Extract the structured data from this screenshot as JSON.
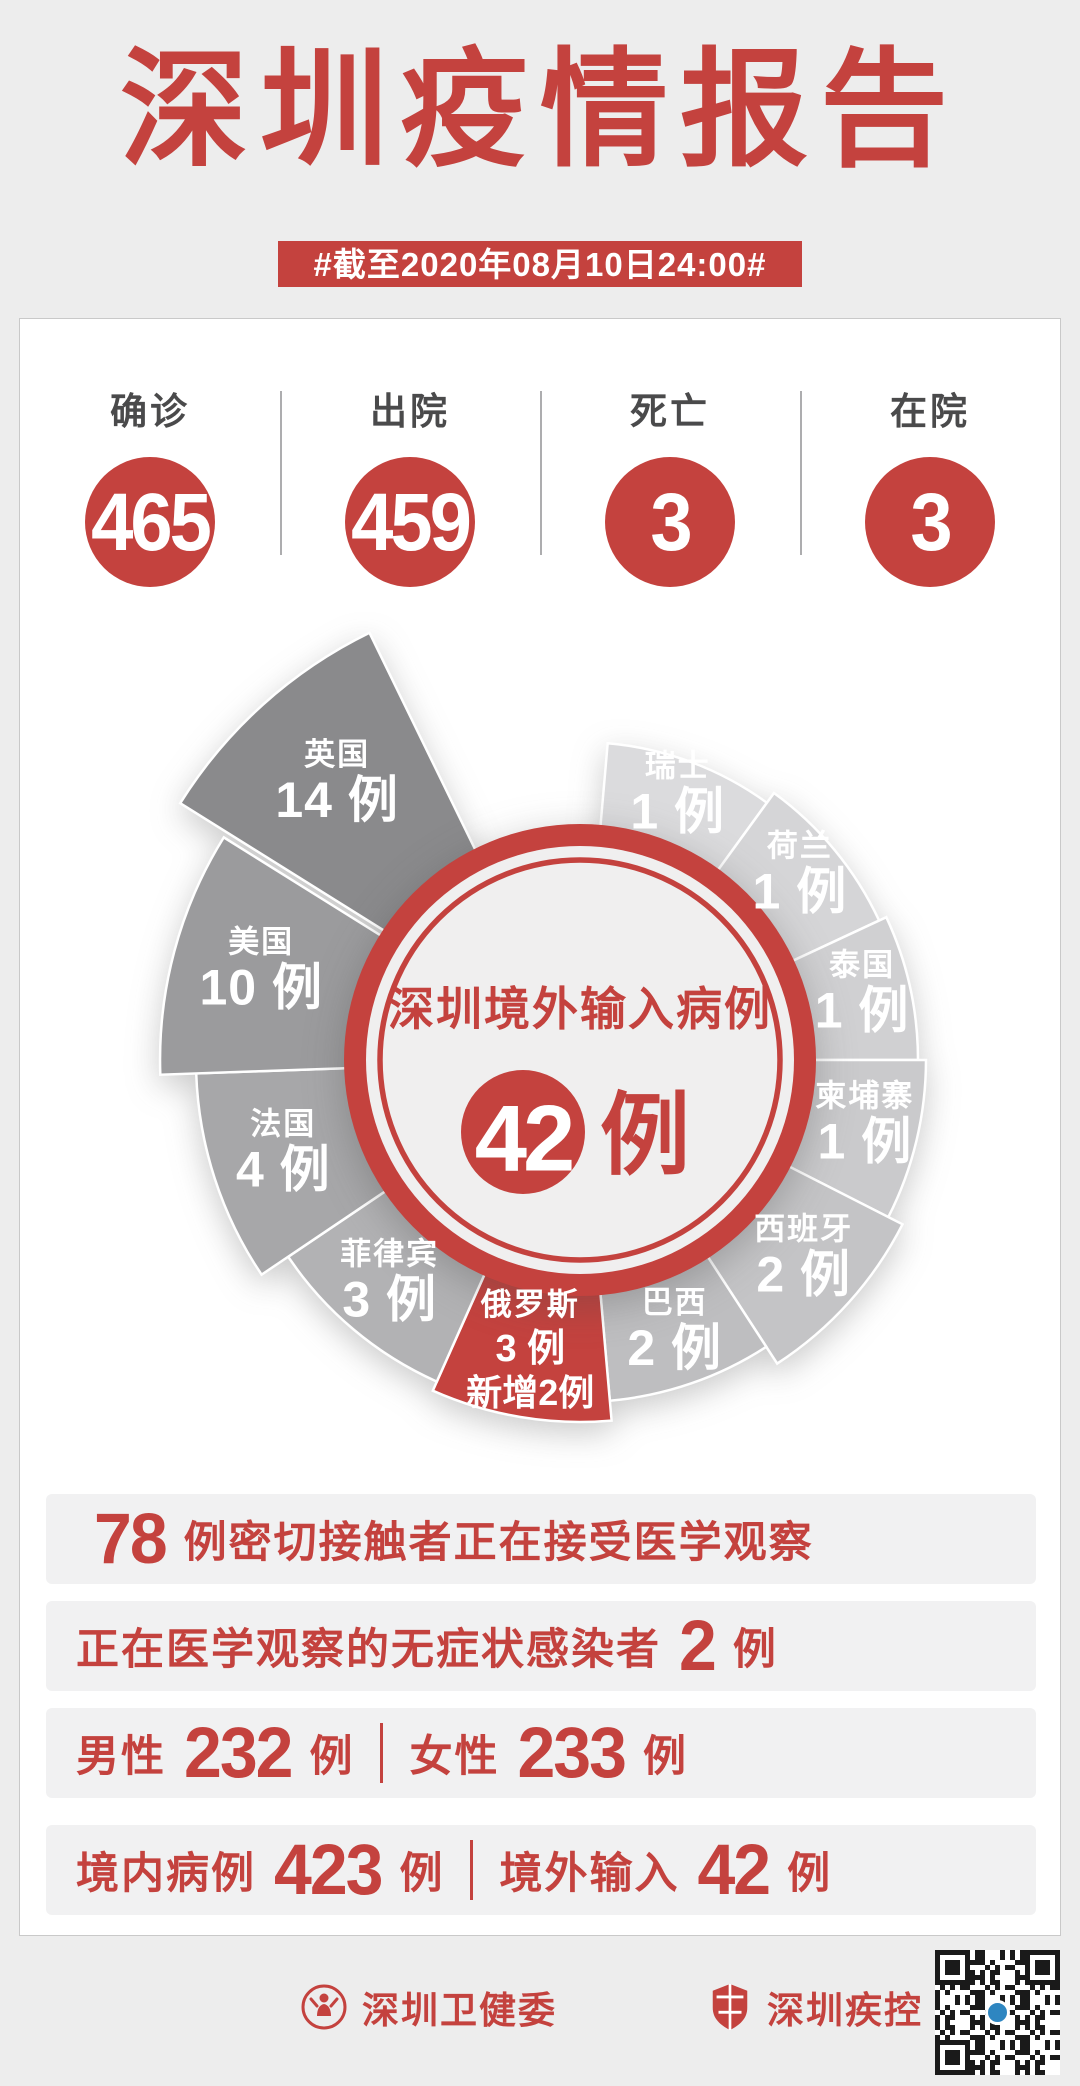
{
  "page": {
    "background": "#EDEDED",
    "accent": "#C4423E"
  },
  "header": {
    "title": "深圳疫情报告",
    "date_banner": "#截至2020年08月10日24:00#"
  },
  "stats": [
    {
      "label": "确诊",
      "value": "465"
    },
    {
      "label": "出院",
      "value": "459"
    },
    {
      "label": "死亡",
      "value": "3"
    },
    {
      "label": "在院",
      "value": "3"
    }
  ],
  "chart_data": {
    "type": "pie",
    "variant": "nightingale-rose",
    "title": "深圳境外输入病例",
    "total": {
      "value": "42",
      "unit": "例"
    },
    "legend_position": "labels-on-slices",
    "slices": [
      {
        "name": "瑞士",
        "value": 1,
        "value_label": "1 例",
        "start": 5,
        "end": 36,
        "radius": 318,
        "color": "#DBDBDD"
      },
      {
        "name": "荷兰",
        "value": 1,
        "value_label": "1 例",
        "start": 36,
        "end": 65,
        "radius": 330,
        "color": "#D5D5D7"
      },
      {
        "name": "泰国",
        "value": 1,
        "value_label": "1 例",
        "start": 65,
        "end": 90,
        "radius": 338,
        "color": "#D0D0D2"
      },
      {
        "name": "柬埔寨",
        "value": 1,
        "value_label": "1 例",
        "start": 90,
        "end": 117,
        "radius": 346,
        "color": "#CACACC"
      },
      {
        "name": "西班牙",
        "value": 2,
        "value_label": "2 例",
        "start": 117,
        "end": 147,
        "radius": 362,
        "color": "#C4C4C6"
      },
      {
        "name": "巴西",
        "value": 2,
        "value_label": "2 例",
        "start": 147,
        "end": 175,
        "radius": 342,
        "color": "#BEBEC0"
      },
      {
        "name": "俄罗斯",
        "value": 3,
        "value_label": "3 例",
        "extra_label": "新增2例",
        "start": 175,
        "end": 204,
        "radius": 362,
        "color": "#C4423E"
      },
      {
        "name": "菲律宾",
        "value": 3,
        "value_label": "3 例",
        "start": 204,
        "end": 236,
        "radius": 352,
        "color": "#B2B2B4"
      },
      {
        "name": "法国",
        "value": 4,
        "value_label": "4 例",
        "start": 236,
        "end": 268,
        "radius": 384,
        "color": "#A7A7A9"
      },
      {
        "name": "美国",
        "value": 10,
        "value_label": "10 例",
        "start": 268,
        "end": 302,
        "radius": 420,
        "color": "#9B9B9D"
      },
      {
        "name": "英国",
        "value": 14,
        "value_label": "14 例",
        "start": 302,
        "end": 334,
        "radius": 462,
        "color": "#8A8A8C",
        "offset": [
          -8,
          -12
        ]
      }
    ]
  },
  "summary_rows": [
    {
      "segments": [
        {
          "t": "num",
          "v": "78"
        },
        {
          "t": "txt",
          "v": "例密切接触者正在接受医学观察"
        }
      ]
    },
    {
      "segments": [
        {
          "t": "txt",
          "v": "正在医学观察的无症状感染者"
        },
        {
          "t": "num",
          "v": "2"
        },
        {
          "t": "txt",
          "v": "例"
        }
      ]
    },
    {
      "segments": [
        {
          "t": "txt",
          "v": "男性"
        },
        {
          "t": "num",
          "v": "232"
        },
        {
          "t": "txt",
          "v": "例"
        },
        {
          "t": "div"
        },
        {
          "t": "txt",
          "v": "女性"
        },
        {
          "t": "num",
          "v": "233"
        },
        {
          "t": "txt",
          "v": "例"
        }
      ]
    },
    {
      "segments": [
        {
          "t": "txt",
          "v": "境内病例"
        },
        {
          "t": "num",
          "v": "423"
        },
        {
          "t": "txt",
          "v": "例"
        },
        {
          "t": "div"
        },
        {
          "t": "txt",
          "v": "境外输入"
        },
        {
          "t": "num",
          "v": "42"
        },
        {
          "t": "txt",
          "v": "例"
        }
      ]
    }
  ],
  "footer": {
    "org1": "深圳卫健委",
    "org2": "深圳疾控"
  }
}
